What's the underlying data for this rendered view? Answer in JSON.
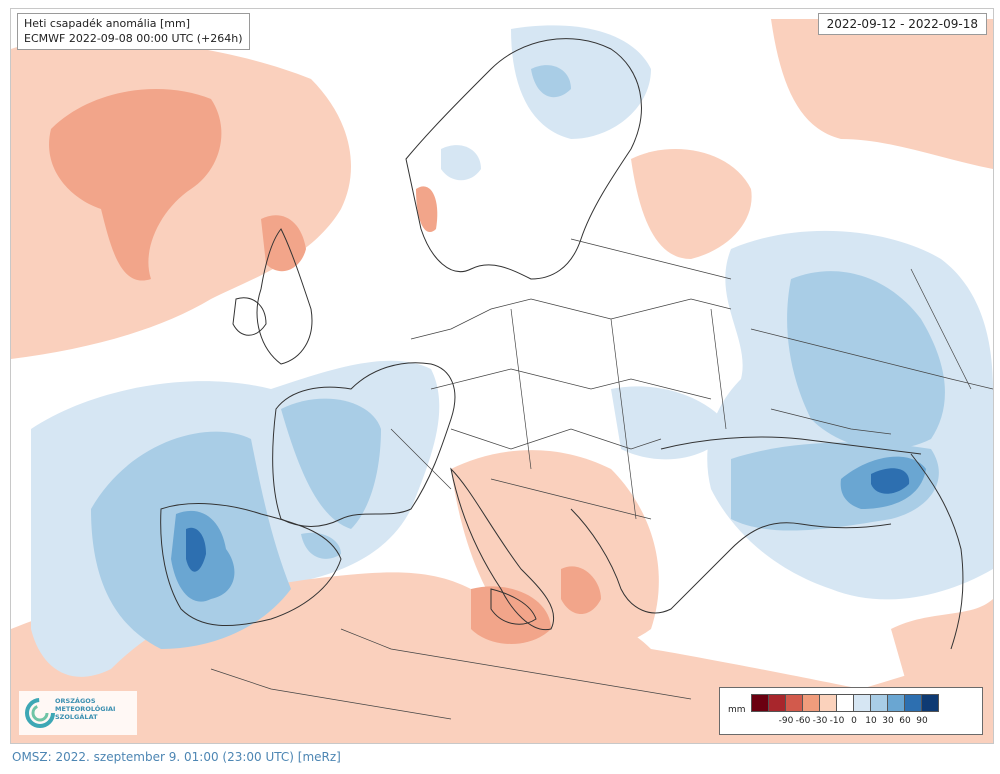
{
  "map": {
    "title": "Heti csapadék anomália [mm]",
    "subtitle": "ECMWF 2022-09-08 00:00 UTC (+264h)",
    "period": "2022-09-12 - 2022-09-18"
  },
  "legend": {
    "unit": "mm",
    "colors": [
      "#6b0010",
      "#a8262c",
      "#d25a4c",
      "#f09c7c",
      "#fbd2bc",
      "#ffffff",
      "#d6e6f3",
      "#a9cde6",
      "#6aa6d2",
      "#2d6fb0",
      "#0e3a73"
    ],
    "ticks": [
      "-90",
      "-60",
      "-30",
      "-10",
      "0",
      "10",
      "30",
      "60",
      "90"
    ]
  },
  "logo": {
    "text": "ORSZÁGOS\nMETEOROLÓGIAI\nSZOLGÁLAT"
  },
  "footer": {
    "text": "OMSZ: 2022. szeptember 9. 01:00 (23:00  UTC)  [meRz]"
  }
}
